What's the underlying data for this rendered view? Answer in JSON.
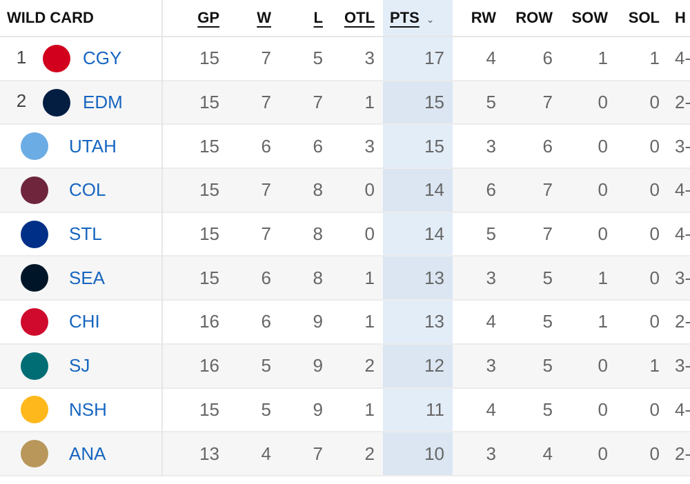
{
  "header": {
    "title": "WILD CARD",
    "columns": [
      "GP",
      "W",
      "L",
      "OTL",
      "PTS",
      "RW",
      "ROW",
      "SOW",
      "SOL",
      "H"
    ],
    "sorted_column": "PTS",
    "sort_icon": "chevron-down-icon"
  },
  "rows": [
    {
      "rank": "1",
      "team": "CGY",
      "logo_color": "#d2001c",
      "gp": "15",
      "w": "7",
      "l": "5",
      "otl": "3",
      "pts": "17",
      "rw": "4",
      "row": "6",
      "sow": "1",
      "sol": "1",
      "h": "4-"
    },
    {
      "rank": "2",
      "team": "EDM",
      "logo_color": "#041e42",
      "gp": "15",
      "w": "7",
      "l": "7",
      "otl": "1",
      "pts": "15",
      "rw": "5",
      "row": "7",
      "sow": "0",
      "sol": "0",
      "h": "2-"
    },
    {
      "rank": "",
      "team": "UTAH",
      "logo_color": "#6cace4",
      "gp": "15",
      "w": "6",
      "l": "6",
      "otl": "3",
      "pts": "15",
      "rw": "3",
      "row": "6",
      "sow": "0",
      "sol": "0",
      "h": "3-"
    },
    {
      "rank": "",
      "team": "COL",
      "logo_color": "#6f263d",
      "gp": "15",
      "w": "7",
      "l": "8",
      "otl": "0",
      "pts": "14",
      "rw": "6",
      "row": "7",
      "sow": "0",
      "sol": "0",
      "h": "4-"
    },
    {
      "rank": "",
      "team": "STL",
      "logo_color": "#002f87",
      "gp": "15",
      "w": "7",
      "l": "8",
      "otl": "0",
      "pts": "14",
      "rw": "5",
      "row": "7",
      "sow": "0",
      "sol": "0",
      "h": "4-"
    },
    {
      "rank": "",
      "team": "SEA",
      "logo_color": "#001628",
      "gp": "15",
      "w": "6",
      "l": "8",
      "otl": "1",
      "pts": "13",
      "rw": "3",
      "row": "5",
      "sow": "1",
      "sol": "0",
      "h": "3-"
    },
    {
      "rank": "",
      "team": "CHI",
      "logo_color": "#cf0a2c",
      "gp": "16",
      "w": "6",
      "l": "9",
      "otl": "1",
      "pts": "13",
      "rw": "4",
      "row": "5",
      "sow": "1",
      "sol": "0",
      "h": "2-"
    },
    {
      "rank": "",
      "team": "SJ",
      "logo_color": "#006d75",
      "gp": "16",
      "w": "5",
      "l": "9",
      "otl": "2",
      "pts": "12",
      "rw": "3",
      "row": "5",
      "sow": "0",
      "sol": "1",
      "h": "3-"
    },
    {
      "rank": "",
      "team": "NSH",
      "logo_color": "#ffb81c",
      "gp": "15",
      "w": "5",
      "l": "9",
      "otl": "1",
      "pts": "11",
      "rw": "4",
      "row": "5",
      "sow": "0",
      "sol": "0",
      "h": "4-"
    },
    {
      "rank": "",
      "team": "ANA",
      "logo_color": "#b9975b",
      "gp": "13",
      "w": "4",
      "l": "7",
      "otl": "2",
      "pts": "10",
      "rw": "3",
      "row": "4",
      "sow": "0",
      "sol": "0",
      "h": "2-"
    }
  ]
}
